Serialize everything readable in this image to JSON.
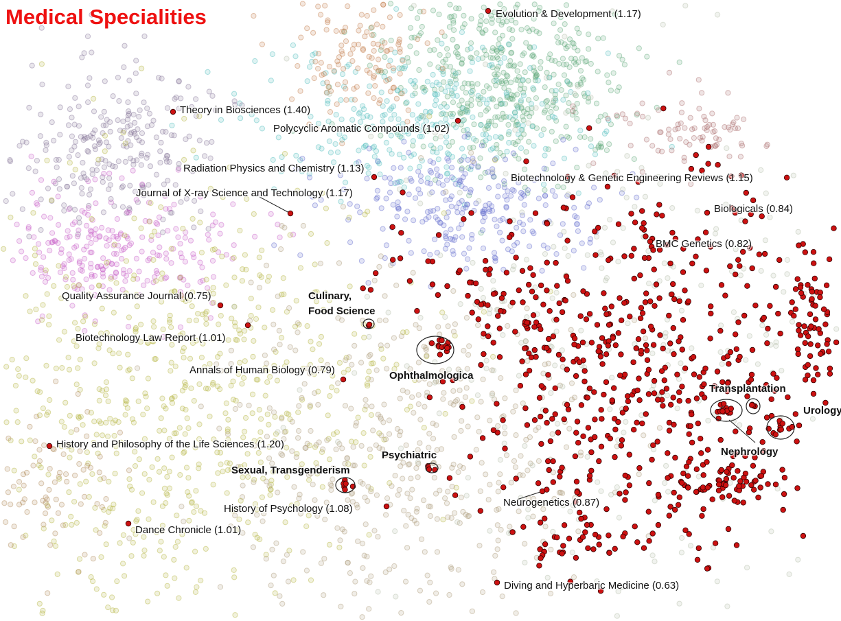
{
  "chart_data": {
    "type": "scatter",
    "title": "Medical Specialities",
    "annotations": [
      "Evolution & Development (1.17)",
      "Theory in Biosciences (1.40)",
      "Polycyclic Aromatic Compounds (1.02)",
      "Radiation Physics and Chemistry (1.13)",
      "Journal of X-ray Science and Technology (1.17)",
      "Biotechnology & Genetic Engineering Reviews (1.15)",
      "Biologicals (0.84)",
      "BMC Genetics (0.82)",
      "Quality Assurance Journal (0.75)",
      "Biotechnology Law Report (1.01)",
      "Annals of Human Biology (0.79)",
      "History and Philosophy of the Life Sciences (1.20)",
      "History of Psychology (1.08)",
      "Dance Chronicle (1.01)",
      "Neurogenetics (0.87)",
      "Diving and Hyperbaric Medicine (0.63)"
    ],
    "cluster_labels": [
      [
        "Culinary,",
        "Food Science"
      ],
      [
        "Ophthalmologica"
      ],
      [
        "Psychiatric"
      ],
      [
        "Sexual, Transgenderism"
      ],
      [
        "Transplantation"
      ],
      [
        "Urology"
      ],
      [
        "Nephrology"
      ]
    ]
  }
}
